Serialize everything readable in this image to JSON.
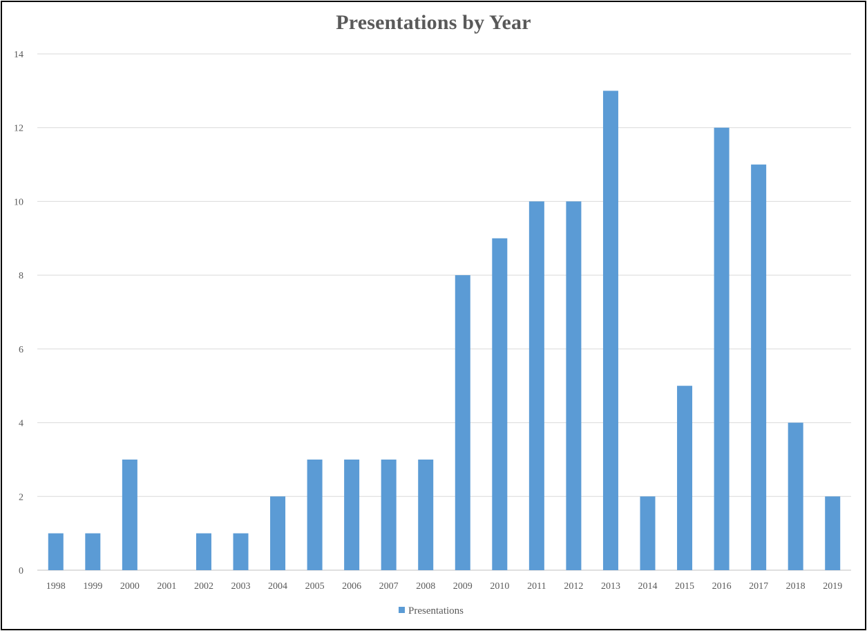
{
  "chart_data": {
    "type": "bar",
    "title": "Presentations by Year",
    "xlabel": "",
    "ylabel": "",
    "categories": [
      "1998",
      "1999",
      "2000",
      "2001",
      "2002",
      "2003",
      "2004",
      "2005",
      "2006",
      "2007",
      "2008",
      "2009",
      "2010",
      "2011",
      "2012",
      "2013",
      "2014",
      "2015",
      "2016",
      "2017",
      "2018",
      "2019"
    ],
    "series": [
      {
        "name": "Presentations",
        "values": [
          1,
          1,
          3,
          0,
          1,
          1,
          2,
          3,
          3,
          3,
          3,
          8,
          9,
          10,
          10,
          13,
          2,
          5,
          12,
          11,
          4,
          2
        ]
      }
    ],
    "ylim": [
      0,
      14
    ],
    "yticks": [
      "0",
      "2",
      "4",
      "6",
      "8",
      "10",
      "12",
      "14"
    ],
    "grid": true,
    "legend_position": "bottom",
    "colors": {
      "bar": "#5b9bd5",
      "grid": "#d9d9d9",
      "text": "#595959"
    }
  }
}
